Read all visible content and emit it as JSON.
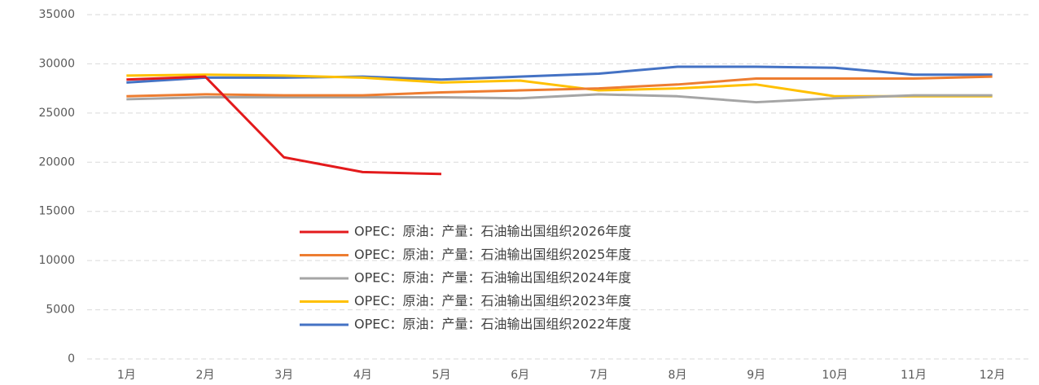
{
  "chart_data": {
    "type": "line",
    "categories": [
      "1月",
      "2月",
      "3月",
      "4月",
      "5月",
      "6月",
      "7月",
      "8月",
      "9月",
      "10月",
      "11月",
      "12月"
    ],
    "series": [
      {
        "name": "OPEC：原油：产量：石油输出国组织2026年度",
        "color": "#e31a1c",
        "values": [
          28400,
          28700,
          20500,
          19000,
          18800,
          null,
          null,
          null,
          null,
          null,
          null,
          null
        ]
      },
      {
        "name": "OPEC：原油：产量：石油输出国组织2025年度",
        "color": "#ed7d31",
        "values": [
          26700,
          26900,
          26800,
          26800,
          27100,
          27300,
          27500,
          27900,
          28500,
          28500,
          28500,
          28700
        ]
      },
      {
        "name": "OPEC：原油：产量：石油输出国组织2024年度",
        "color": "#a5a5a5",
        "values": [
          26400,
          26600,
          26600,
          26600,
          26600,
          26500,
          26900,
          26700,
          26100,
          26500,
          26800,
          26800
        ]
      },
      {
        "name": "OPEC：原油：产量：石油输出国组织2023年度",
        "color": "#ffc000",
        "values": [
          28800,
          28900,
          28800,
          28600,
          28100,
          28300,
          27300,
          27500,
          27900,
          26700,
          26700,
          26700
        ]
      },
      {
        "name": "OPEC：原油：产量：石油输出国组织2022年度",
        "color": "#4472c4",
        "values": [
          28100,
          28600,
          28600,
          28700,
          28400,
          28700,
          29000,
          29700,
          29700,
          29600,
          28900,
          28900
        ]
      }
    ],
    "ylim": [
      0,
      35000
    ],
    "yticks": [
      0,
      5000,
      10000,
      15000,
      20000,
      25000,
      30000,
      35000
    ],
    "grid": true
  }
}
